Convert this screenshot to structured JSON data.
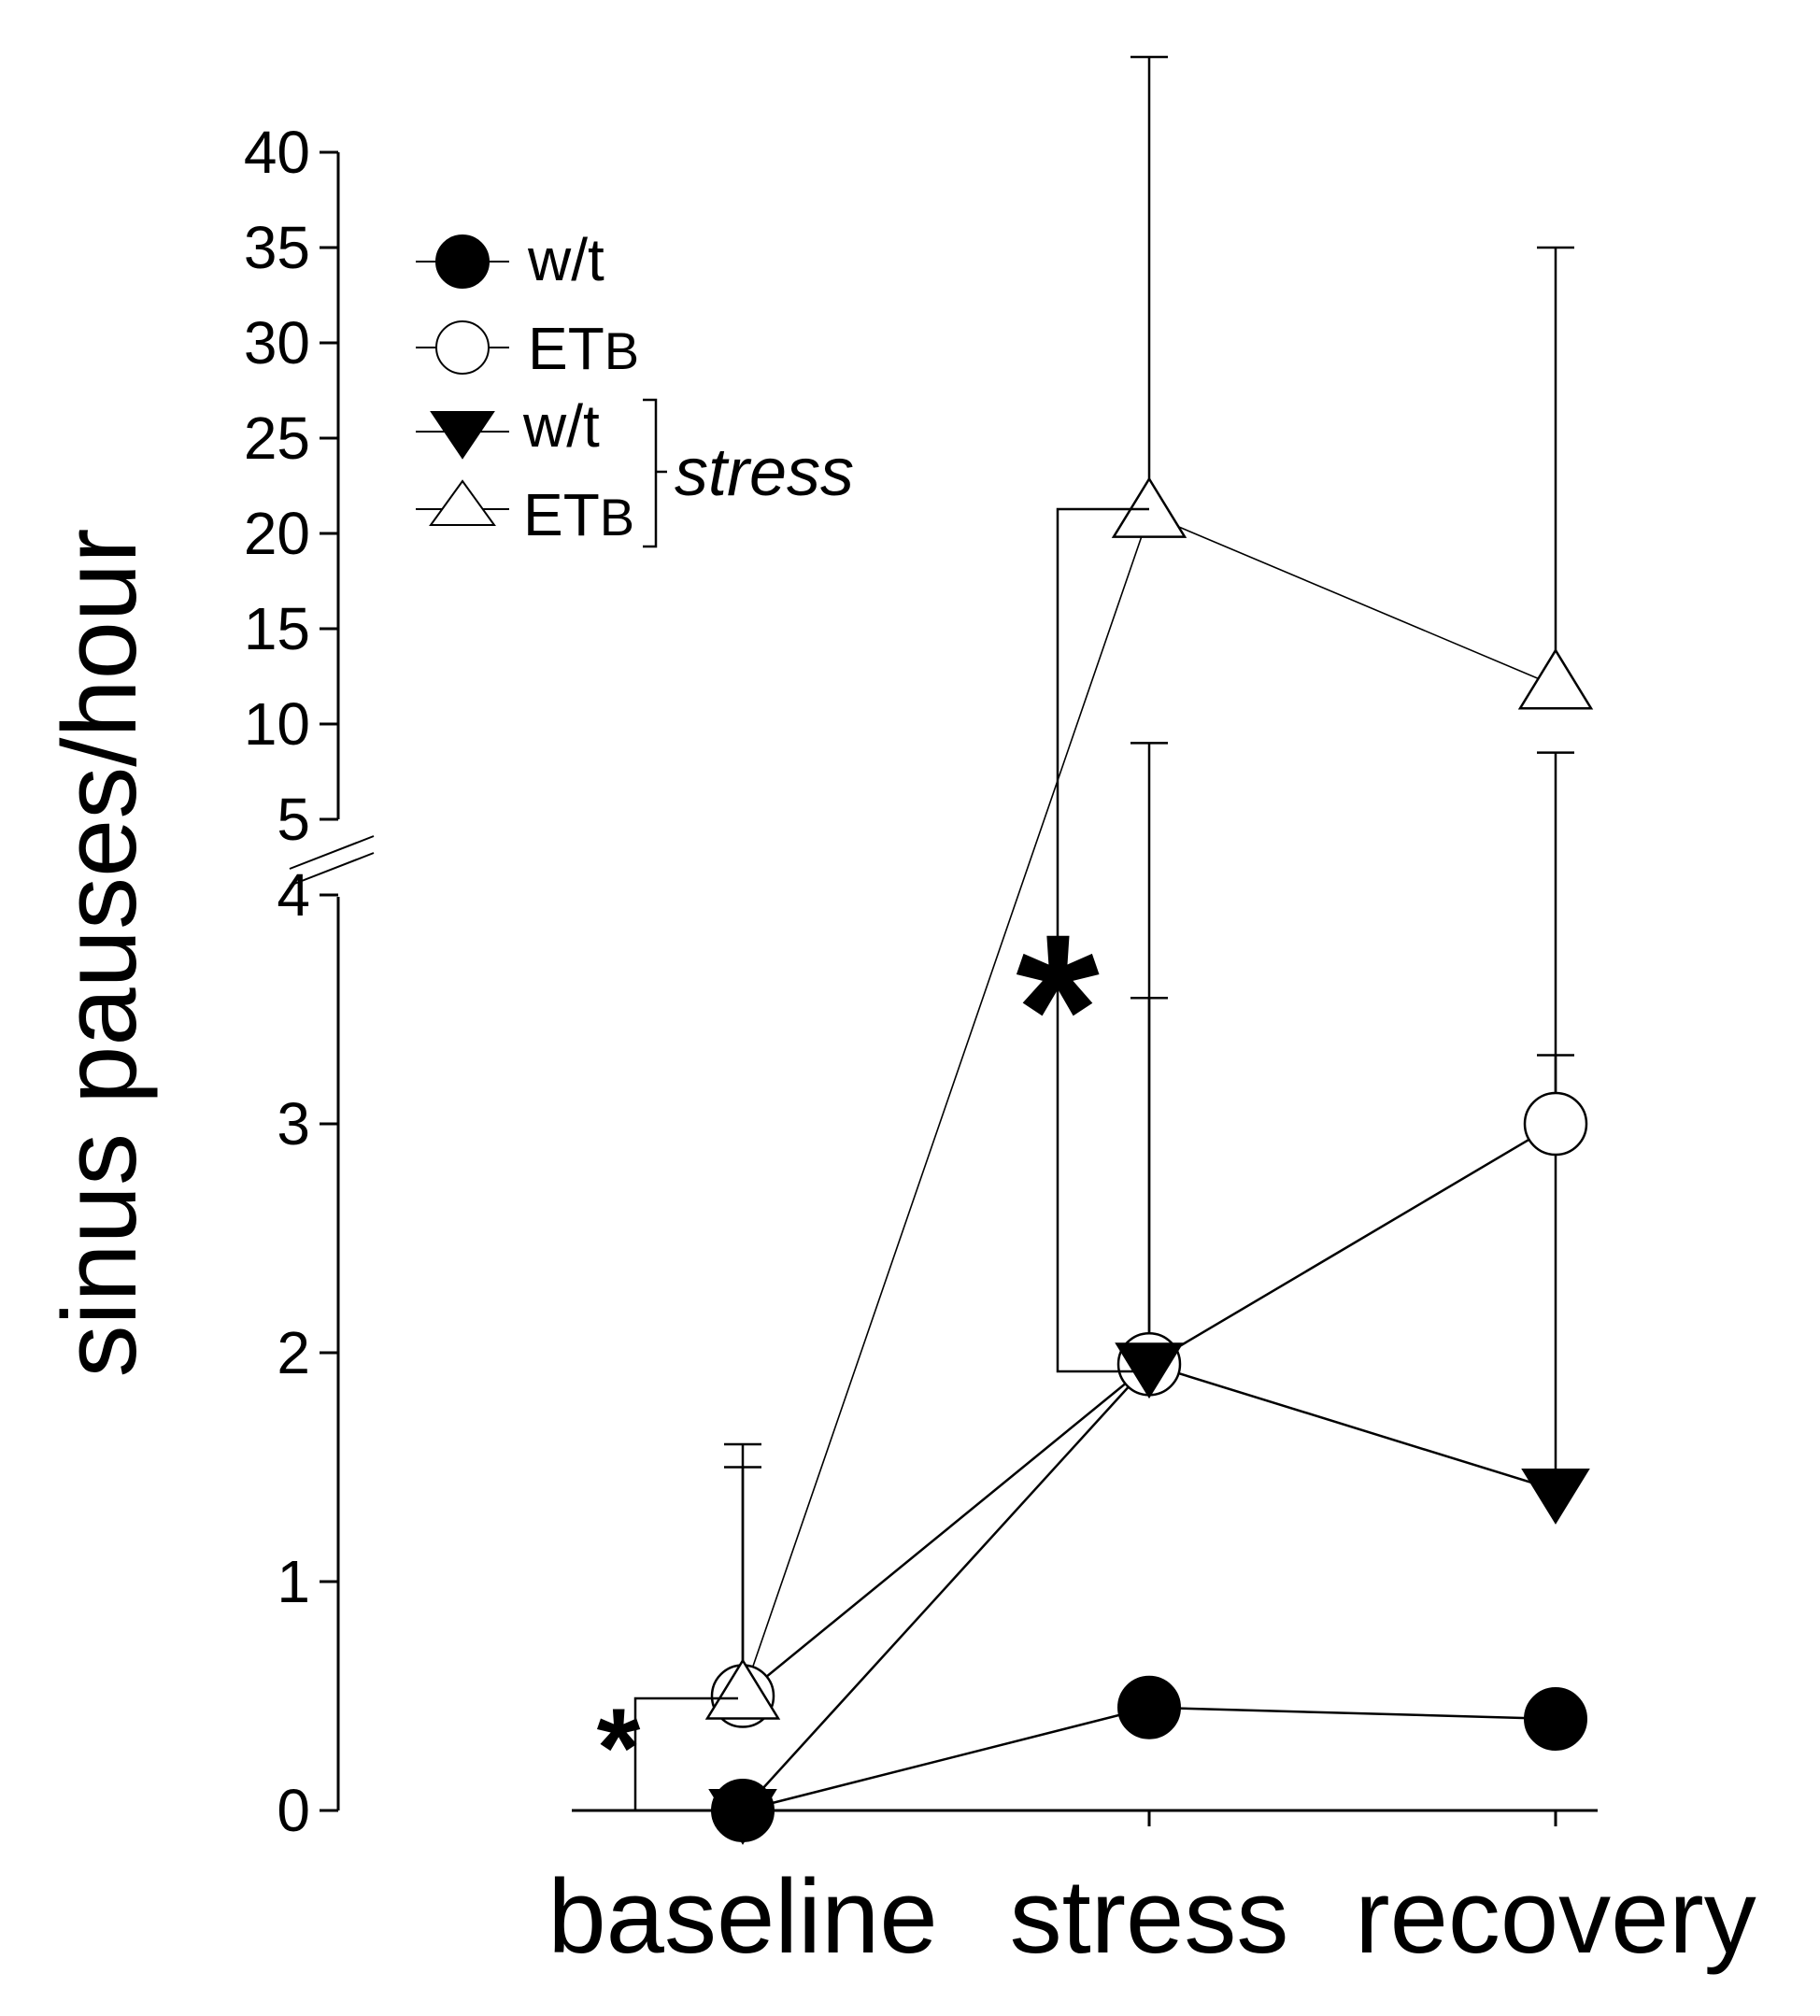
{
  "chart_data": {
    "type": "line",
    "ylabel": "sinus pauses/hour",
    "xlabel": "",
    "categories": [
      "baseline",
      "stress",
      "recovery"
    ],
    "y_axis": {
      "lower_segment": {
        "range": [
          0,
          4
        ],
        "ticks": [
          "0",
          "1",
          "2",
          "3",
          "4"
        ]
      },
      "upper_segment": {
        "range": [
          5,
          40
        ],
        "ticks": [
          "5",
          "10",
          "15",
          "20",
          "25",
          "30",
          "35",
          "40"
        ]
      },
      "broken": true
    },
    "legend": {
      "placement": "top-left",
      "entries": [
        {
          "label": "w/t",
          "marker": "filled-circle"
        },
        {
          "label": "ET",
          "subscript": "B",
          "marker": "open-circle"
        },
        {
          "label": "w/t",
          "marker": "filled-triangle-down"
        },
        {
          "label": "ET",
          "subscript": "B",
          "marker": "open-triangle-up"
        }
      ],
      "group_label": "stress"
    },
    "series": [
      {
        "name": "w/t",
        "marker": "filled-circle",
        "values": [
          0,
          0.45,
          0.4
        ],
        "error_high": [
          null,
          null,
          null
        ]
      },
      {
        "name": "ETB",
        "marker": "open-circle",
        "values": [
          0.5,
          1.95,
          3.0
        ],
        "error_high": [
          1.5,
          3.55,
          3.3
        ]
      },
      {
        "name": "w/t stress",
        "marker": "filled-triangle-down",
        "values": [
          0,
          1.95,
          1.4
        ],
        "error_high": [
          null,
          9.0,
          8.5
        ]
      },
      {
        "name": "ETB stress",
        "marker": "open-triangle-up",
        "values": [
          0.5,
          21.0,
          12.0
        ],
        "error_high": [
          1.6,
          45.0,
          35.0
        ]
      }
    ],
    "annotations": [
      {
        "text": "*",
        "between": "baseline ETB vs w/t"
      },
      {
        "text": "*",
        "between": "stress ETB stress vs stress"
      }
    ]
  }
}
